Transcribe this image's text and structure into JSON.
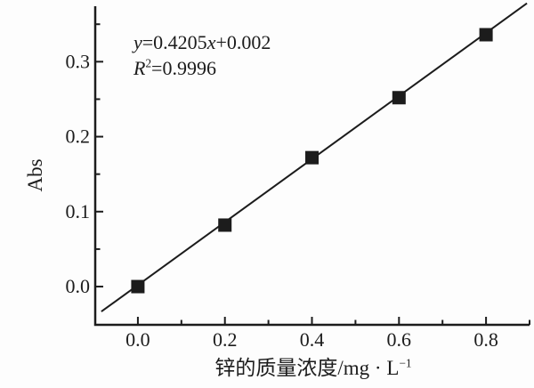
{
  "figure": {
    "background": "#fdfdfd",
    "ink_color": "#1c1c1c"
  },
  "chart_data": {
    "type": "scatter",
    "title": "",
    "xlabel": "锌的质量浓度/mg·L⁻¹",
    "xlabel_main": "锌的质量浓度/mg · L",
    "xlabel_sup": "−1",
    "ylabel": "Abs",
    "x_ticks": [
      0.0,
      0.2,
      0.4,
      0.6,
      0.8
    ],
    "y_ticks": [
      0.0,
      0.1,
      0.2,
      0.3
    ],
    "x_minor_ticks": [
      0.1,
      0.3,
      0.5,
      0.7,
      0.9
    ],
    "y_minor_ticks": [
      0.05,
      0.15,
      0.25,
      0.35
    ],
    "xlim": [
      -0.098,
      0.9
    ],
    "ylim": [
      -0.051,
      0.374
    ],
    "grid": false,
    "legend": false,
    "series": [
      {
        "name": "calibration-points",
        "marker": "square",
        "color": "#1c1c1c",
        "x": [
          0.0,
          0.2,
          0.4,
          0.6,
          0.8
        ],
        "y": [
          0.0,
          0.082,
          0.172,
          0.252,
          0.336
        ]
      }
    ],
    "fit_line": {
      "slope": 0.4205,
      "intercept": 0.002,
      "x_range": [
        -0.084,
        0.894
      ],
      "color": "#1c1c1c"
    },
    "annotations": {
      "equation_text": "y=0.4205x+0.002",
      "r_squared_text": "R²=0.9996",
      "equation_segments": [
        {
          "text": "y",
          "style": "italic"
        },
        {
          "text": "=0.4205",
          "style": "normal"
        },
        {
          "text": "x",
          "style": "italic"
        },
        {
          "text": "+0.002",
          "style": "normal"
        }
      ],
      "r_squared_segments": [
        {
          "text": "R",
          "style": "italic"
        },
        {
          "text": "2",
          "style": "sup"
        },
        {
          "text": "=0.9996",
          "style": "normal"
        }
      ]
    }
  }
}
